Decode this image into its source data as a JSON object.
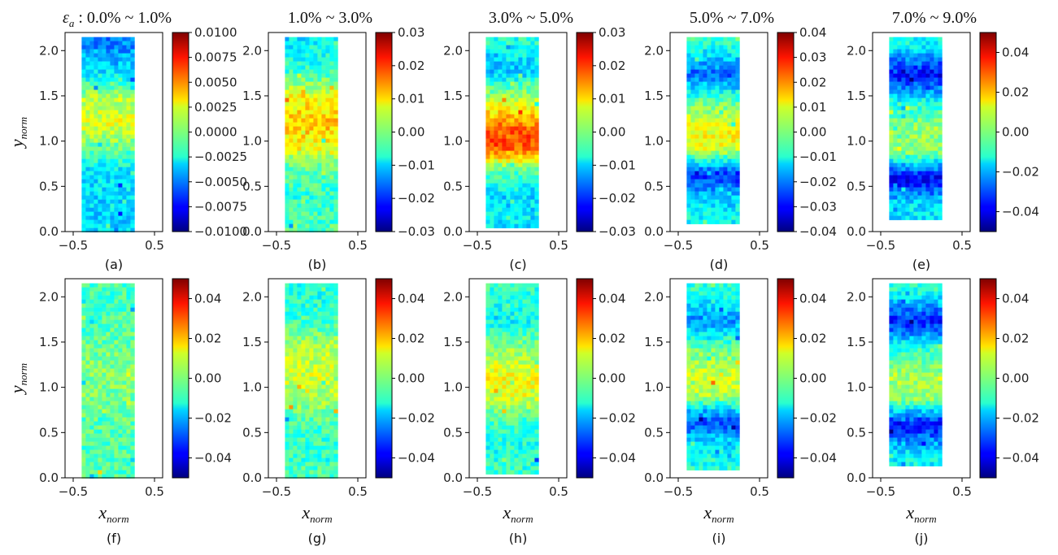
{
  "chart_data": {
    "type": "heatmap",
    "title_symbol": "ε",
    "title_sub": "a",
    "xlabel": "x",
    "xlabel_sub": "norm",
    "ylabel": "y",
    "ylabel_sub": "norm",
    "xticks": [
      "−0.5",
      "0.5"
    ],
    "yticks": [
      "0.0",
      "0.5",
      "1.0",
      "1.5",
      "2.0"
    ],
    "xlim": [
      -0.6,
      0.6
    ],
    "ylim": [
      0,
      2.2
    ],
    "colormap": "jet",
    "panels": [
      {
        "label": "(a)",
        "title": " : 0.0% ~ 1.0%",
        "row": 0,
        "col": 0,
        "cb_ticks": [
          "0.0100",
          "0.0075",
          "0.0050",
          "0.0025",
          "0.0000",
          "−0.0025",
          "−0.0050",
          "−0.0075",
          "−0.0100"
        ],
        "cb_range": [
          -0.01,
          0.01
        ],
        "specimen_top": 2.15,
        "specimen_bottom": 0.0,
        "bands": [
          {
            "y": 2.12,
            "v": 0.25
          },
          {
            "y": 1.8,
            "v": 0.34
          },
          {
            "y": 1.5,
            "v": 0.55
          },
          {
            "y": 1.2,
            "v": 0.6
          },
          {
            "y": 1.0,
            "v": 0.5
          },
          {
            "y": 0.7,
            "v": 0.36
          },
          {
            "y": 0.35,
            "v": 0.34
          },
          {
            "y": 0.05,
            "v": 0.34
          }
        ]
      },
      {
        "label": "(b)",
        "title": "1.0% ~ 3.0%",
        "row": 0,
        "col": 1,
        "cb_ticks": [
          "0.03",
          "0.02",
          "0.01",
          "0.00",
          "−0.01",
          "−0.02",
          "−0.03"
        ],
        "cb_range": [
          -0.03,
          0.03
        ],
        "specimen_top": 2.15,
        "specimen_bottom": 0.0,
        "bands": [
          {
            "y": 2.1,
            "v": 0.36
          },
          {
            "y": 1.8,
            "v": 0.42
          },
          {
            "y": 1.5,
            "v": 0.62
          },
          {
            "y": 1.2,
            "v": 0.68
          },
          {
            "y": 0.95,
            "v": 0.62
          },
          {
            "y": 0.75,
            "v": 0.48
          },
          {
            "y": 0.4,
            "v": 0.42
          },
          {
            "y": 0.1,
            "v": 0.44
          }
        ]
      },
      {
        "label": "(c)",
        "title": "3.0% ~ 5.0%",
        "row": 0,
        "col": 2,
        "cb_ticks": [
          "0.03",
          "0.02",
          "0.01",
          "0.00",
          "−0.01",
          "−0.02",
          "−0.03"
        ],
        "cb_range": [
          -0.03,
          0.03
        ],
        "specimen_top": 2.15,
        "specimen_bottom": 0.08,
        "bands": [
          {
            "y": 2.1,
            "v": 0.4
          },
          {
            "y": 1.8,
            "v": 0.32
          },
          {
            "y": 1.5,
            "v": 0.55
          },
          {
            "y": 1.15,
            "v": 0.78
          },
          {
            "y": 0.95,
            "v": 0.8
          },
          {
            "y": 0.7,
            "v": 0.46
          },
          {
            "y": 0.4,
            "v": 0.34
          },
          {
            "y": 0.15,
            "v": 0.36
          }
        ]
      },
      {
        "label": "(d)",
        "title": "5.0% ~ 7.0%",
        "row": 0,
        "col": 3,
        "cb_ticks": [
          "0.04",
          "0.03",
          "0.02",
          "0.01",
          "0.00",
          "−0.01",
          "−0.02",
          "−0.03",
          "−0.04"
        ],
        "cb_range": [
          -0.04,
          0.04
        ],
        "specimen_top": 2.15,
        "specimen_bottom": 0.12,
        "bands": [
          {
            "y": 2.1,
            "v": 0.42
          },
          {
            "y": 1.75,
            "v": 0.22
          },
          {
            "y": 1.45,
            "v": 0.48
          },
          {
            "y": 1.15,
            "v": 0.62
          },
          {
            "y": 0.95,
            "v": 0.6
          },
          {
            "y": 0.65,
            "v": 0.16
          },
          {
            "y": 0.4,
            "v": 0.32
          },
          {
            "y": 0.2,
            "v": 0.38
          }
        ]
      },
      {
        "label": "(e)",
        "title": "7.0% ~ 9.0%",
        "row": 0,
        "col": 4,
        "cb_ticks": [
          "0.04",
          "0.02",
          "0.00",
          "−0.02",
          "−0.04"
        ],
        "cb_range": [
          -0.05,
          0.05
        ],
        "specimen_top": 2.15,
        "specimen_bottom": 0.16,
        "bands": [
          {
            "y": 2.1,
            "v": 0.38
          },
          {
            "y": 1.75,
            "v": 0.12
          },
          {
            "y": 1.45,
            "v": 0.4
          },
          {
            "y": 1.15,
            "v": 0.52
          },
          {
            "y": 0.9,
            "v": 0.5
          },
          {
            "y": 0.6,
            "v": 0.1
          },
          {
            "y": 0.35,
            "v": 0.34
          },
          {
            "y": 0.2,
            "v": 0.36
          }
        ]
      },
      {
        "label": "(f)",
        "title": "",
        "row": 1,
        "col": 0,
        "cb_ticks": [
          "0.04",
          "0.02",
          "0.00",
          "−0.02",
          "−0.04"
        ],
        "cb_range": [
          -0.05,
          0.05
        ],
        "specimen_top": 2.15,
        "specimen_bottom": 0.0,
        "bands": [
          {
            "y": 2.1,
            "v": 0.44
          },
          {
            "y": 1.7,
            "v": 0.45
          },
          {
            "y": 1.3,
            "v": 0.5
          },
          {
            "y": 1.0,
            "v": 0.5
          },
          {
            "y": 0.6,
            "v": 0.46
          },
          {
            "y": 0.1,
            "v": 0.45
          }
        ]
      },
      {
        "label": "(g)",
        "title": "",
        "row": 1,
        "col": 1,
        "cb_ticks": [
          "0.04",
          "0.02",
          "0.00",
          "−0.02",
          "−0.04"
        ],
        "cb_range": [
          -0.05,
          0.05
        ],
        "specimen_top": 2.15,
        "specimen_bottom": 0.0,
        "bands": [
          {
            "y": 2.1,
            "v": 0.4
          },
          {
            "y": 1.75,
            "v": 0.43
          },
          {
            "y": 1.45,
            "v": 0.55
          },
          {
            "y": 1.15,
            "v": 0.58
          },
          {
            "y": 0.9,
            "v": 0.54
          },
          {
            "y": 0.6,
            "v": 0.44
          },
          {
            "y": 0.3,
            "v": 0.42
          },
          {
            "y": 0.08,
            "v": 0.45
          }
        ]
      },
      {
        "label": "(h)",
        "title": "",
        "row": 1,
        "col": 2,
        "cb_ticks": [
          "0.04",
          "0.02",
          "0.00",
          "−0.02",
          "−0.04"
        ],
        "cb_range": [
          -0.05,
          0.05
        ],
        "specimen_top": 2.15,
        "specimen_bottom": 0.06,
        "bands": [
          {
            "y": 2.1,
            "v": 0.42
          },
          {
            "y": 1.75,
            "v": 0.38
          },
          {
            "y": 1.45,
            "v": 0.52
          },
          {
            "y": 1.15,
            "v": 0.62
          },
          {
            "y": 0.95,
            "v": 0.6
          },
          {
            "y": 0.65,
            "v": 0.44
          },
          {
            "y": 0.35,
            "v": 0.4
          },
          {
            "y": 0.12,
            "v": 0.42
          }
        ]
      },
      {
        "label": "(i)",
        "title": "",
        "row": 1,
        "col": 3,
        "cb_ticks": [
          "0.04",
          "0.02",
          "0.00",
          "−0.02",
          "−0.04"
        ],
        "cb_range": [
          -0.05,
          0.05
        ],
        "specimen_top": 2.15,
        "specimen_bottom": 0.12,
        "bands": [
          {
            "y": 2.1,
            "v": 0.42
          },
          {
            "y": 1.75,
            "v": 0.28
          },
          {
            "y": 1.45,
            "v": 0.48
          },
          {
            "y": 1.15,
            "v": 0.58
          },
          {
            "y": 0.95,
            "v": 0.56
          },
          {
            "y": 0.65,
            "v": 0.2
          },
          {
            "y": 0.4,
            "v": 0.34
          },
          {
            "y": 0.2,
            "v": 0.4
          }
        ]
      },
      {
        "label": "(j)",
        "title": "",
        "row": 1,
        "col": 4,
        "cb_ticks": [
          "0.04",
          "0.02",
          "0.00",
          "−0.02",
          "−0.04"
        ],
        "cb_range": [
          -0.05,
          0.05
        ],
        "specimen_top": 2.15,
        "specimen_bottom": 0.16,
        "bands": [
          {
            "y": 2.1,
            "v": 0.42
          },
          {
            "y": 1.75,
            "v": 0.15
          },
          {
            "y": 1.45,
            "v": 0.42
          },
          {
            "y": 1.15,
            "v": 0.54
          },
          {
            "y": 0.9,
            "v": 0.52
          },
          {
            "y": 0.6,
            "v": 0.12
          },
          {
            "y": 0.35,
            "v": 0.34
          },
          {
            "y": 0.2,
            "v": 0.38
          }
        ]
      }
    ]
  }
}
